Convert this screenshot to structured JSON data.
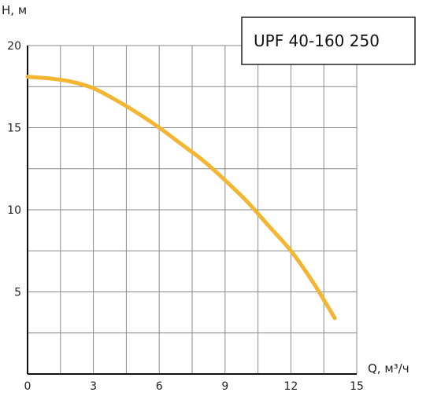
{
  "chart_data": {
    "type": "line",
    "title": "UPF 40-160 250",
    "xlabel": "Q, м³/ч",
    "ylabel": "H, м",
    "xlim": [
      0,
      15
    ],
    "ylim": [
      0,
      20
    ],
    "x_ticks": [
      0,
      3,
      6,
      9,
      12,
      15
    ],
    "y_ticks": [
      5,
      10,
      15,
      20
    ],
    "grid": true,
    "legend_placement": "top-right",
    "series": [
      {
        "color": "#F2B632",
        "x": [
          0,
          1,
          2,
          3,
          4,
          5,
          6,
          7,
          8,
          9,
          10,
          11,
          12,
          13,
          14
        ],
        "y": [
          18.1,
          18.0,
          17.8,
          17.4,
          16.7,
          15.9,
          15.0,
          14.0,
          13.0,
          11.8,
          10.5,
          9.0,
          7.5,
          5.6,
          3.4
        ]
      }
    ]
  }
}
